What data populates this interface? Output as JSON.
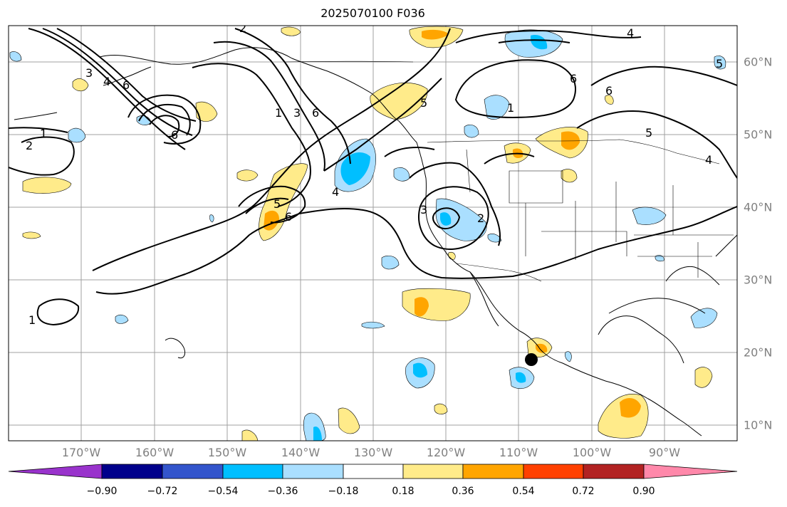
{
  "title": "2025070100 F036",
  "lon_labels": [
    "170°W",
    "160°W",
    "150°W",
    "140°W",
    "130°W",
    "120°W",
    "110°W",
    "100°W",
    "90°W"
  ],
  "lat_labels": [
    "60°N",
    "50°N",
    "40°N",
    "30°N",
    "20°N",
    "10°N"
  ],
  "colorbar": {
    "ticks": [
      "−0.90",
      "−0.72",
      "−0.54",
      "−0.36",
      "−0.18",
      "0.18",
      "0.36",
      "0.54",
      "0.72",
      "0.90"
    ],
    "colors": [
      "#9933cc",
      "#00008b",
      "#3355cc",
      "#00bfff",
      "#aadfff",
      "#ffffff",
      "#ffeb8a",
      "#ffa500",
      "#ff4000",
      "#b22222",
      "#ff88aa"
    ]
  },
  "contour_labels": [
    "1",
    "2",
    "3",
    "4",
    "5",
    "6"
  ],
  "marker": {
    "lon": -108.2,
    "lat": 19.2
  }
}
